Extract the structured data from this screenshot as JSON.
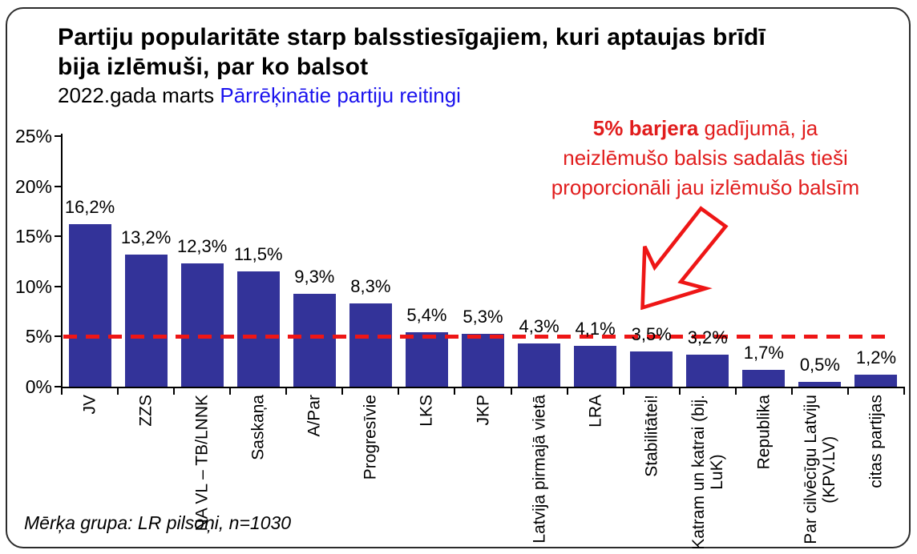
{
  "title": "Partiju popularitāte starp balsstiesīgajiem, kuri aptaujas brīdī\nbija izlēmuši, par ko balsot",
  "subtitle": {
    "date": "2022.gada marts ",
    "link": "Pārrēķinātie partiju reitingi"
  },
  "annotation": {
    "line1_bold": "5% barjera",
    "line1_rest": " gadījumā, ja",
    "line2": "neizlēmušo balsis sadalās tieši",
    "line3": "proporcionāli jau izlēmušo balsīm"
  },
  "footnote": "Mērķa grupa: LR pilsoņi, n=1030",
  "colors": {
    "bar": "#333399",
    "threshold_red": "#ee1616",
    "annotation_red": "#e11d1d",
    "link_blue": "#1a12ee"
  },
  "chart_data": {
    "type": "bar",
    "title": "Partiju popularitāte starp balsstiesīgajiem, kuri aptaujas brīdī bija izlēmuši, par ko balsot",
    "subtitle": "2022.gada marts Pārrēķinātie partiju reitingi",
    "categories": [
      "JV",
      "ZZS",
      "NA VL – TB/LNNK",
      "Saskaņa",
      "A/Par",
      "Progresīvie",
      "LKS",
      "JKP",
      "Latvija pirmajā vietā",
      "LRA",
      "Stabilitātei!",
      "Katram un katrai (bij. LuK)",
      "Republika",
      "Par cilvēcīgu Latviju (KPV.LV)",
      "citas partijas"
    ],
    "category_display": [
      "JV",
      "ZZS",
      "NA VL – TB/LNNK",
      "Saskaņa",
      "A/Par",
      "Progresīvie",
      "LKS",
      "JKP",
      "Latvija pirmajā vietā",
      "LRA",
      "Stabilitātei!",
      "Katram un katrai (bij.\nLuK)",
      "Republika",
      "Par cilvēcīgu Latviju\n(KPV.LV)",
      "citas partijas"
    ],
    "values": [
      16.2,
      13.2,
      12.3,
      11.5,
      9.3,
      8.3,
      5.4,
      5.3,
      4.3,
      4.1,
      3.5,
      3.2,
      1.7,
      0.5,
      1.2
    ],
    "value_labels": [
      "16,2%",
      "13,2%",
      "12,3%",
      "11,5%",
      "9,3%",
      "8,3%",
      "5,4%",
      "5,3%",
      "4,3%",
      "4,1%",
      "3,5%",
      "3,2%",
      "1,7%",
      "0,5%",
      "1,2%"
    ],
    "y_ticks": {
      "values": [
        0,
        5,
        10,
        15,
        20,
        25
      ],
      "labels": [
        "0%",
        "5%",
        "10%",
        "15%",
        "20%",
        "25%"
      ]
    },
    "ylim": [
      0,
      25
    ],
    "threshold": {
      "value": 5,
      "style": "dashed",
      "color": "#ee1616",
      "meaning": "5% barjera"
    },
    "bar_color": "#333399",
    "grid": false,
    "legend": false
  }
}
